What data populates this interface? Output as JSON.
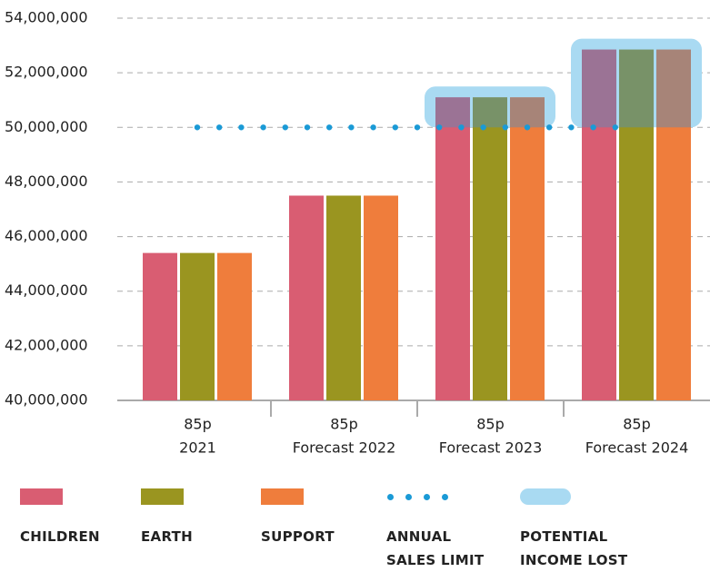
{
  "chart_data": {
    "type": "bar",
    "categories": [
      "2021",
      "Forecast 2022",
      "Forecast 2023",
      "Forecast 2024"
    ],
    "category_sublabels": [
      "85p",
      "85p",
      "85p",
      "85p"
    ],
    "series": [
      {
        "name": "CHILDREN",
        "color": "#d95d72",
        "values": [
          45400000,
          47500000,
          51100000,
          52850000
        ]
      },
      {
        "name": "EARTH",
        "color": "#9a9520",
        "values": [
          45400000,
          47500000,
          51100000,
          52850000
        ]
      },
      {
        "name": "SUPPORT",
        "color": "#ef7d3c",
        "values": [
          45400000,
          47500000,
          51100000,
          52850000
        ]
      }
    ],
    "limit": 50000000,
    "limit_name": "ANNUAL SALES LIMIT",
    "limit_color": "#1a9ad6",
    "lost_name": "POTENTIAL INCOME LOST",
    "lost_color": "#a9daf2",
    "ylim": [
      40000000,
      54000000
    ],
    "yticks": [
      {
        "value": 40000000,
        "label": "40,000,000"
      },
      {
        "value": 42000000,
        "label": "42,000,000"
      },
      {
        "value": 44000000,
        "label": "44,000,000"
      },
      {
        "value": 46000000,
        "label": "46,000,000"
      },
      {
        "value": 48000000,
        "label": "48,000,000"
      },
      {
        "value": 50000000,
        "label": "50,000,000"
      },
      {
        "value": 52000000,
        "label": "52,000,000"
      },
      {
        "value": 54000000,
        "label": "54,000,000"
      }
    ],
    "grid": true
  }
}
